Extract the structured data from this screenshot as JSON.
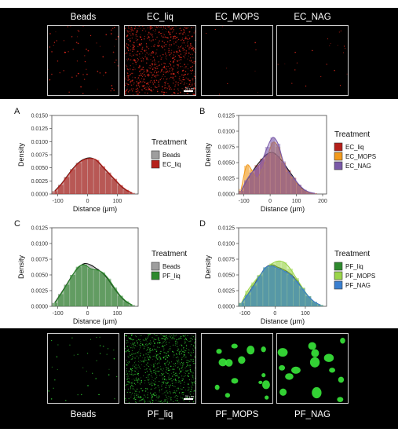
{
  "top_strip": {
    "labels": [
      "Beads",
      "EC_liq",
      "EC_MOPS",
      "EC_NAG"
    ],
    "scale_text": "20 μm"
  },
  "bottom_strip": {
    "labels": [
      "Beads",
      "PF_liq",
      "PF_MOPS",
      "PF_NAG"
    ],
    "scale_text": "20 μm"
  },
  "colors": {
    "Beads": "#9e9e9e",
    "EC_liq": "#b5201a",
    "EC_MOPS": "#f29a1c",
    "EC_NAG": "#7a5aa8",
    "PF_liq": "#2e8a2e",
    "PF_MOPS": "#9ad54a",
    "PF_NAG": "#3a7fd0",
    "red_dots": "#e0281c",
    "green_dots": "#39e83a"
  },
  "chart_data": [
    {
      "panel": "A",
      "type": "area",
      "xlabel": "Distance (μm)",
      "ylabel": "Density",
      "xlim": [
        -120,
        170
      ],
      "ylim": [
        0,
        0.015
      ],
      "xticks": [
        -100,
        0,
        100
      ],
      "yticks": [
        "0.0000",
        "0.0025",
        "0.0050",
        "0.0075",
        "0.0100",
        "0.0125",
        "0.0150"
      ],
      "legend_title": "Treatment",
      "legend": [
        "Beads",
        "EC_liq"
      ],
      "x": [
        -110,
        -90,
        -70,
        -50,
        -30,
        -10,
        10,
        30,
        50,
        70,
        90,
        110,
        130,
        150
      ],
      "series": [
        {
          "name": "Beads",
          "values": [
            0.0006,
            0.0018,
            0.0033,
            0.0048,
            0.006,
            0.0067,
            0.0069,
            0.0064,
            0.0052,
            0.004,
            0.0028,
            0.0016,
            0.0007,
            0.0002
          ]
        },
        {
          "name": "EC_liq",
          "values": [
            0.0005,
            0.0017,
            0.0032,
            0.0047,
            0.0059,
            0.0066,
            0.0068,
            0.0065,
            0.0053,
            0.0041,
            0.0029,
            0.0017,
            0.0008,
            0.0002
          ]
        }
      ]
    },
    {
      "panel": "B",
      "type": "area",
      "xlabel": "Distance (μm)",
      "ylabel": "Density",
      "xlim": [
        -120,
        215
      ],
      "ylim": [
        0,
        0.0125
      ],
      "xticks": [
        -100,
        0,
        100,
        200
      ],
      "yticks": [
        "0.0000",
        "0.0025",
        "0.0050",
        "0.0075",
        "0.0100",
        "0.0125"
      ],
      "legend_title": "Treatment",
      "legend": [
        "EC_liq",
        "EC_MOPS",
        "EC_NAG"
      ],
      "x": [
        -110,
        -90,
        -70,
        -50,
        -30,
        -10,
        10,
        30,
        50,
        70,
        90,
        110,
        130,
        150,
        170
      ],
      "series": [
        {
          "name": "EC_liq",
          "values": [
            0.0005,
            0.002,
            0.0034,
            0.0046,
            0.0056,
            0.0064,
            0.0066,
            0.006,
            0.005,
            0.0038,
            0.0026,
            0.0014,
            0.0006,
            0.0002,
            0.0001
          ]
        },
        {
          "name": "EC_MOPS",
          "values": [
            0.0008,
            0.0045,
            0.0038,
            0.0025,
            0.004,
            0.006,
            0.0082,
            0.0075,
            0.005,
            0.0034,
            0.0022,
            0.0012,
            0.0005,
            0.0002,
            0.0001
          ]
        },
        {
          "name": "EC_NAG",
          "values": [
            0.0005,
            0.0022,
            0.0034,
            0.0042,
            0.0054,
            0.0075,
            0.009,
            0.008,
            0.0052,
            0.0035,
            0.0025,
            0.0015,
            0.0007,
            0.0003,
            0.0001
          ]
        }
      ]
    },
    {
      "panel": "C",
      "type": "area",
      "xlabel": "Distance (μm)",
      "ylabel": "Density",
      "xlim": [
        -120,
        170
      ],
      "ylim": [
        0,
        0.0125
      ],
      "xticks": [
        -100,
        0,
        100
      ],
      "yticks": [
        "0.0000",
        "0.0025",
        "0.0050",
        "0.0075",
        "0.0100",
        "0.0125"
      ],
      "legend_title": "Treatment",
      "legend": [
        "Beads",
        "PF_liq"
      ],
      "x": [
        -110,
        -90,
        -70,
        -50,
        -30,
        -10,
        10,
        30,
        50,
        70,
        90,
        110,
        130,
        150
      ],
      "series": [
        {
          "name": "Beads",
          "values": [
            0.0006,
            0.002,
            0.0035,
            0.005,
            0.0062,
            0.0068,
            0.0066,
            0.006,
            0.0053,
            0.0042,
            0.0028,
            0.0016,
            0.0007,
            0.0002
          ]
        },
        {
          "name": "PF_liq",
          "values": [
            0.0005,
            0.0019,
            0.0034,
            0.005,
            0.0063,
            0.0066,
            0.006,
            0.0058,
            0.0054,
            0.0044,
            0.003,
            0.0017,
            0.0008,
            0.0002
          ]
        }
      ]
    },
    {
      "panel": "D",
      "type": "area",
      "xlabel": "Distance (μm)",
      "ylabel": "Density",
      "xlim": [
        -120,
        170
      ],
      "ylim": [
        0,
        0.0125
      ],
      "xticks": [
        -100,
        0,
        100
      ],
      "yticks": [
        "0.0000",
        "0.0025",
        "0.0050",
        "0.0075",
        "0.0100",
        "0.0125"
      ],
      "legend_title": "Treatment",
      "legend": [
        "PF_liq",
        "PF_MOPS",
        "PF_NAG"
      ],
      "x": [
        -110,
        -90,
        -70,
        -50,
        -30,
        -10,
        10,
        30,
        50,
        70,
        90,
        110,
        130,
        150
      ],
      "series": [
        {
          "name": "PF_liq",
          "values": [
            0.0005,
            0.0019,
            0.0034,
            0.0049,
            0.0062,
            0.0066,
            0.0062,
            0.0058,
            0.0052,
            0.0042,
            0.0029,
            0.0016,
            0.0007,
            0.0002
          ]
        },
        {
          "name": "PF_MOPS",
          "values": [
            0.0006,
            0.0025,
            0.0038,
            0.005,
            0.006,
            0.0068,
            0.0072,
            0.007,
            0.006,
            0.0045,
            0.003,
            0.0016,
            0.0006,
            0.0002
          ]
        },
        {
          "name": "PF_NAG",
          "values": [
            0.0005,
            0.0018,
            0.0032,
            0.0048,
            0.0062,
            0.0064,
            0.006,
            0.0056,
            0.005,
            0.004,
            0.0028,
            0.0016,
            0.0007,
            0.0002
          ]
        }
      ]
    }
  ]
}
